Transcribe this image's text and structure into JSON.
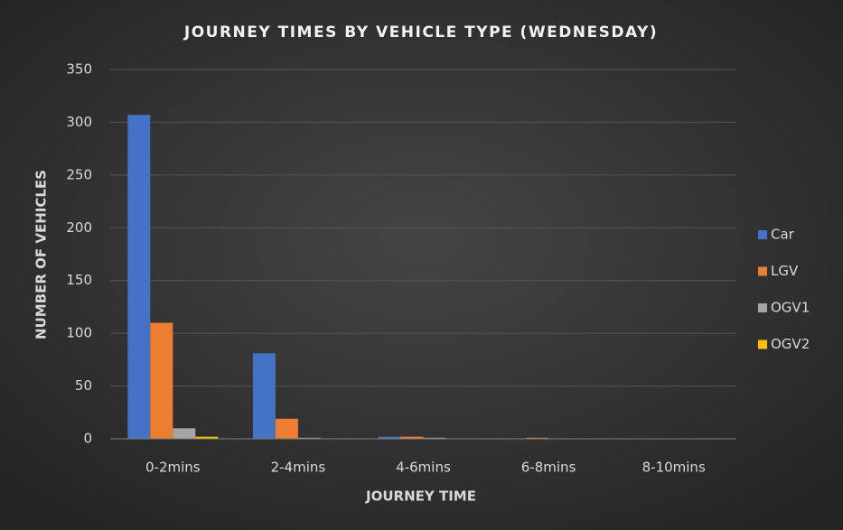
{
  "chart_data": {
    "type": "bar",
    "title": "JOURNEY TIMES BY VEHICLE TYPE (WEDNESDAY)",
    "x_label": "JOURNEY TIME",
    "y_label": "NUMBER OF VEHICLES",
    "categories": [
      "0-2mins",
      "2-4mins",
      "4-6mins",
      "6-8mins",
      "8-10mins"
    ],
    "series": [
      {
        "name": "Car",
        "color": "#4472c4",
        "values": [
          307,
          81,
          2,
          0,
          0
        ]
      },
      {
        "name": "LGV",
        "color": "#ed7d31",
        "values": [
          110,
          19,
          2,
          1,
          0
        ]
      },
      {
        "name": "OGV1",
        "color": "#a5a5a5",
        "values": [
          10,
          1,
          1,
          0,
          0
        ]
      },
      {
        "name": "OGV2",
        "color": "#ffc000",
        "values": [
          2,
          0,
          0,
          0,
          0
        ]
      }
    ],
    "ylim": [
      0,
      350
    ],
    "yticks": [
      0,
      50,
      100,
      150,
      200,
      250,
      300,
      350
    ],
    "grid": true,
    "legend": "right"
  }
}
